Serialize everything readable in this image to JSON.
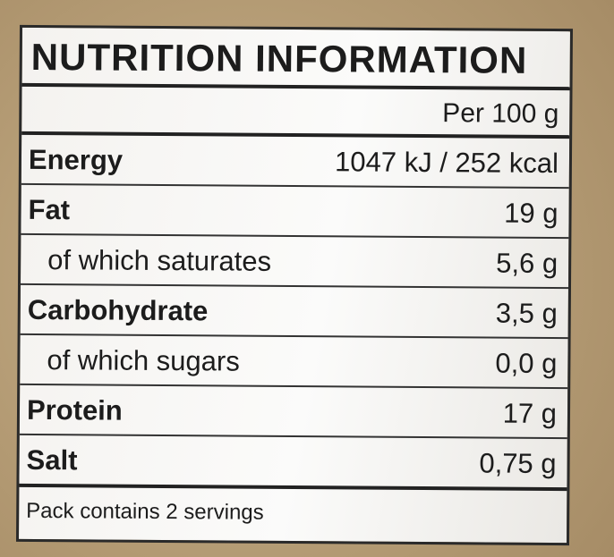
{
  "header": {
    "title": "NUTRITION INFORMATION"
  },
  "table": {
    "column_header": "Per 100 g",
    "rows": [
      [
        "Energy",
        "1047 kJ / 252 kcal"
      ],
      [
        "Fat",
        "19 g"
      ],
      [
        "of which saturates",
        "5,6 g"
      ],
      [
        "Carbohydrate",
        "3,5 g"
      ],
      [
        "of which sugars",
        "0,0 g"
      ],
      [
        "Protein",
        "17 g"
      ],
      [
        "Salt",
        "0,75 g"
      ]
    ]
  },
  "footer": {
    "note": "Pack contains 2 servings"
  }
}
